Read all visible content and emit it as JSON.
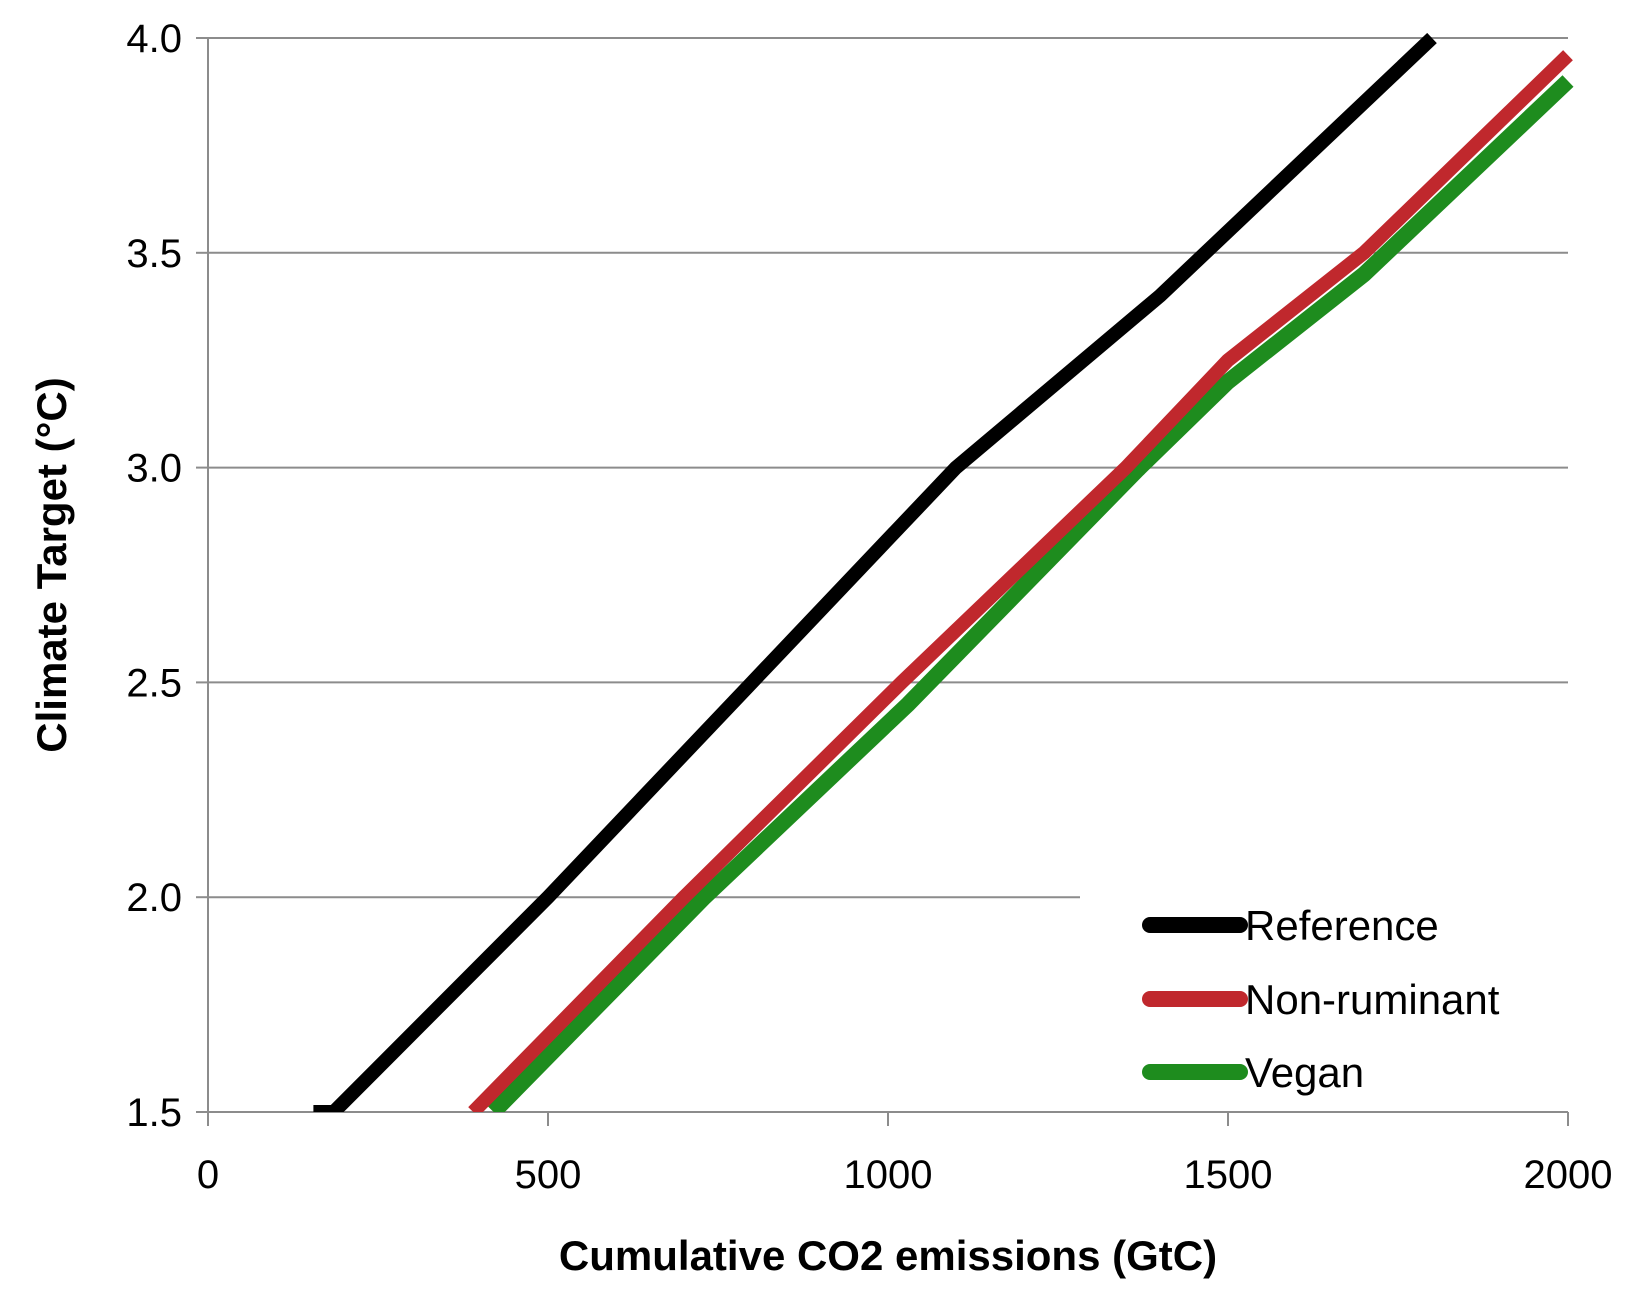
{
  "chart_data": {
    "type": "line",
    "title": "",
    "xlabel": "Cumulative CO2 emissions (GtC)",
    "ylabel": "Climate Target (°C)",
    "xlim": [
      0,
      2000
    ],
    "ylim": [
      1.5,
      4.0
    ],
    "x_ticks": [
      0,
      500,
      1000,
      1500,
      2000
    ],
    "x_tick_labels": [
      "0",
      "500",
      "1000",
      "1500",
      "2000"
    ],
    "y_ticks": [
      1.5,
      2.0,
      2.5,
      3.0,
      3.5,
      4.0
    ],
    "y_tick_labels": [
      "1.5",
      "2.0",
      "2.5",
      "3.0",
      "3.5",
      "4.0"
    ],
    "grid": "horizontal",
    "legend_position": "bottom-right",
    "series": [
      {
        "name": "Reference",
        "color": "#000000",
        "x": [
          155,
          185,
          500,
          800,
          1100,
          1400,
          1800
        ],
        "y": [
          1.5,
          1.5,
          2.0,
          2.5,
          3.0,
          3.4,
          4.0
        ]
      },
      {
        "name": "Non-ruminant",
        "color": "#c0282d",
        "x": [
          390,
          700,
          1020,
          1350,
          1500,
          1700,
          2000
        ],
        "y": [
          1.5,
          2.0,
          2.5,
          3.0,
          3.25,
          3.5,
          3.96
        ]
      },
      {
        "name": "Vegan",
        "color": "#1e8c1e",
        "x": [
          420,
          730,
          1030,
          1370,
          1500,
          1700,
          2000
        ],
        "y": [
          1.5,
          2.0,
          2.45,
          3.0,
          3.2,
          3.45,
          3.9
        ]
      }
    ]
  }
}
